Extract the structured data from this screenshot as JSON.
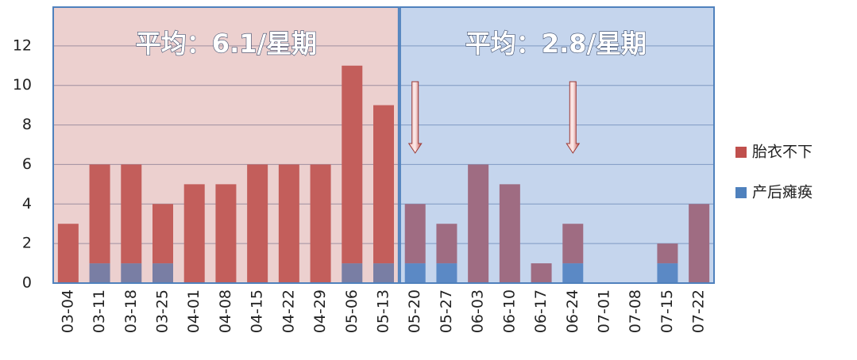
{
  "chart_data": {
    "type": "stacked-bar",
    "annotations": [
      "平均：6.1/星期",
      "平均：2.8/星期"
    ],
    "categories": [
      "03-04",
      "03-11",
      "03-18",
      "03-25",
      "04-01",
      "04-08",
      "04-15",
      "04-22",
      "04-29",
      "05-06",
      "05-13",
      "05-20",
      "05-27",
      "06-03",
      "06-10",
      "06-17",
      "06-24",
      "07-01",
      "07-08",
      "07-15",
      "07-22"
    ],
    "series": [
      {
        "name": "产后瘫痪",
        "color": "#4f81bd",
        "values": [
          0,
          1,
          1,
          1,
          0,
          0,
          0,
          0,
          0,
          1,
          1,
          1,
          1,
          0,
          0,
          0,
          1,
          0,
          0,
          1,
          0
        ]
      },
      {
        "name": "胎衣不下",
        "color": "#c0504d",
        "values": [
          3,
          5,
          5,
          3,
          5,
          5,
          6,
          6,
          6,
          10,
          8,
          3,
          2,
          6,
          5,
          1,
          2,
          0,
          0,
          1,
          4
        ]
      }
    ],
    "ylim": [
      0,
      14
    ],
    "yticks": [
      0,
      2,
      4,
      6,
      8,
      10,
      12
    ],
    "grid": true,
    "legend": "right"
  }
}
